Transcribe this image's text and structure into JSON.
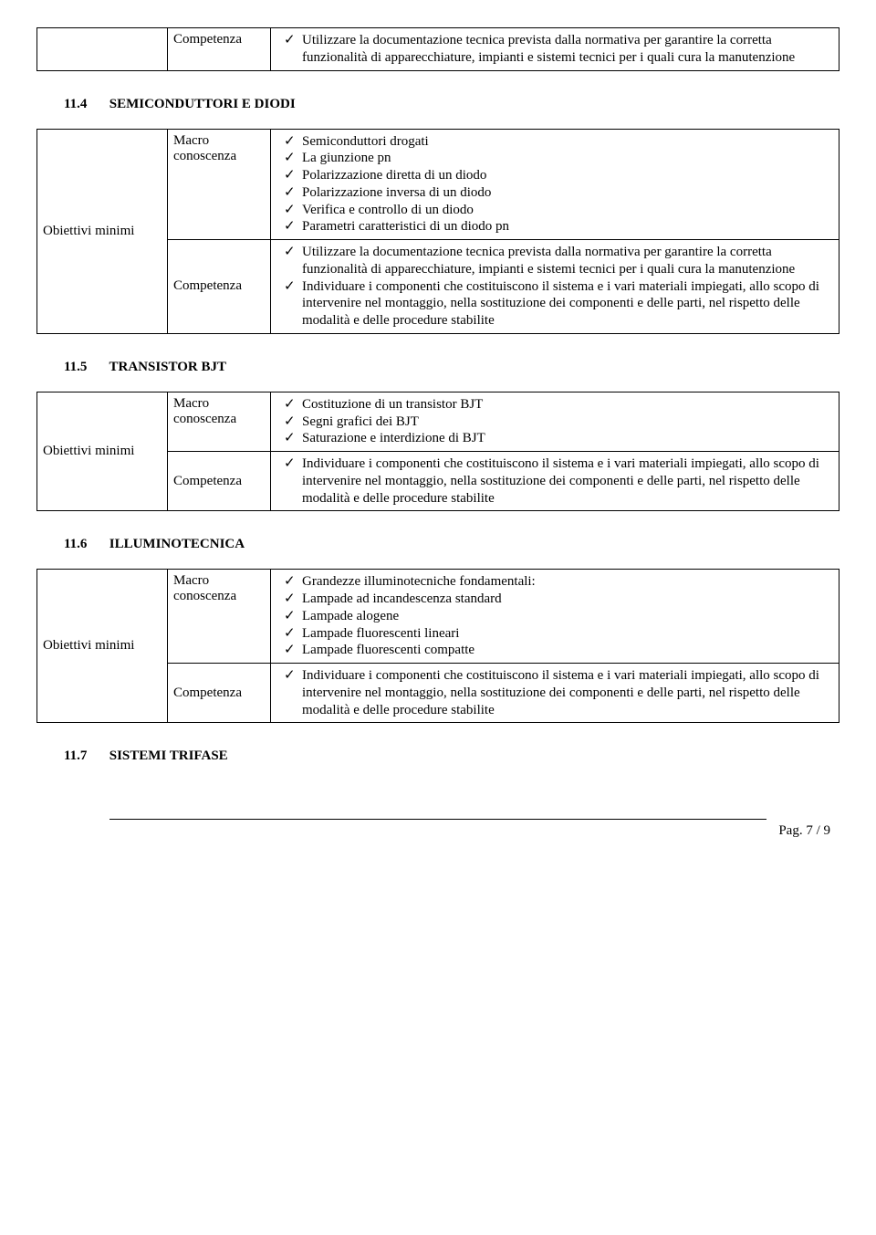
{
  "labels": {
    "competenza": "Competenza",
    "macro_conoscenza": "Macro conoscenza",
    "obiettivi_minimi": "Obiettivi minimi"
  },
  "top_table": {
    "competenza_items": [
      "Utilizzare la documentazione tecnica prevista dalla normativa per garantire la corretta funzionalità di apparecchiature, impianti e sistemi tecnici per i quali cura la manutenzione"
    ]
  },
  "sections": {
    "s114": {
      "number": "11.4",
      "title": "SEMICONDUTTORI E DIODI",
      "macro_items": [
        "Semiconduttori drogati",
        "La giunzione pn",
        "Polarizzazione diretta di un diodo",
        "Polarizzazione inversa di un diodo",
        "Verifica e controllo di un diodo",
        "Parametri caratteristici di un diodo pn"
      ],
      "comp_items": [
        "Utilizzare la documentazione tecnica prevista dalla normativa per garantire la corretta funzionalità di apparecchiature, impianti e sistemi tecnici per i quali cura la manutenzione",
        "Individuare i componenti che costituiscono il sistema e i vari materiali impiegati, allo scopo di intervenire nel montaggio, nella sostituzione dei componenti e delle parti, nel rispetto delle modalità e delle procedure stabilite"
      ]
    },
    "s115": {
      "number": "11.5",
      "title": "TRANSISTOR BJT",
      "macro_items": [
        "Costituzione di un transistor BJT",
        "Segni grafici dei BJT",
        "Saturazione e interdizione di BJT"
      ],
      "comp_items": [
        "Individuare i componenti che costituiscono il sistema e i vari materiali impiegati, allo scopo di intervenire nel montaggio, nella sostituzione dei componenti e delle parti, nel rispetto delle modalità e delle procedure stabilite"
      ]
    },
    "s116": {
      "number": "11.6",
      "title": "ILLUMINOTECNICA",
      "macro_items": [
        "Grandezze illuminotecniche fondamentali:",
        "Lampade ad incandescenza standard",
        "Lampade alogene",
        "Lampade fluorescenti lineari",
        "Lampade fluorescenti compatte"
      ],
      "comp_items": [
        "Individuare i componenti che costituiscono il sistema e i vari materiali impiegati, allo scopo di intervenire nel montaggio, nella sostituzione dei componenti e delle parti, nel rispetto delle modalità e delle procedure stabilite"
      ]
    },
    "s117": {
      "number": "11.7",
      "title": "SISTEMI TRIFASE"
    }
  },
  "footer": {
    "page": "Pag. 7 / 9"
  }
}
